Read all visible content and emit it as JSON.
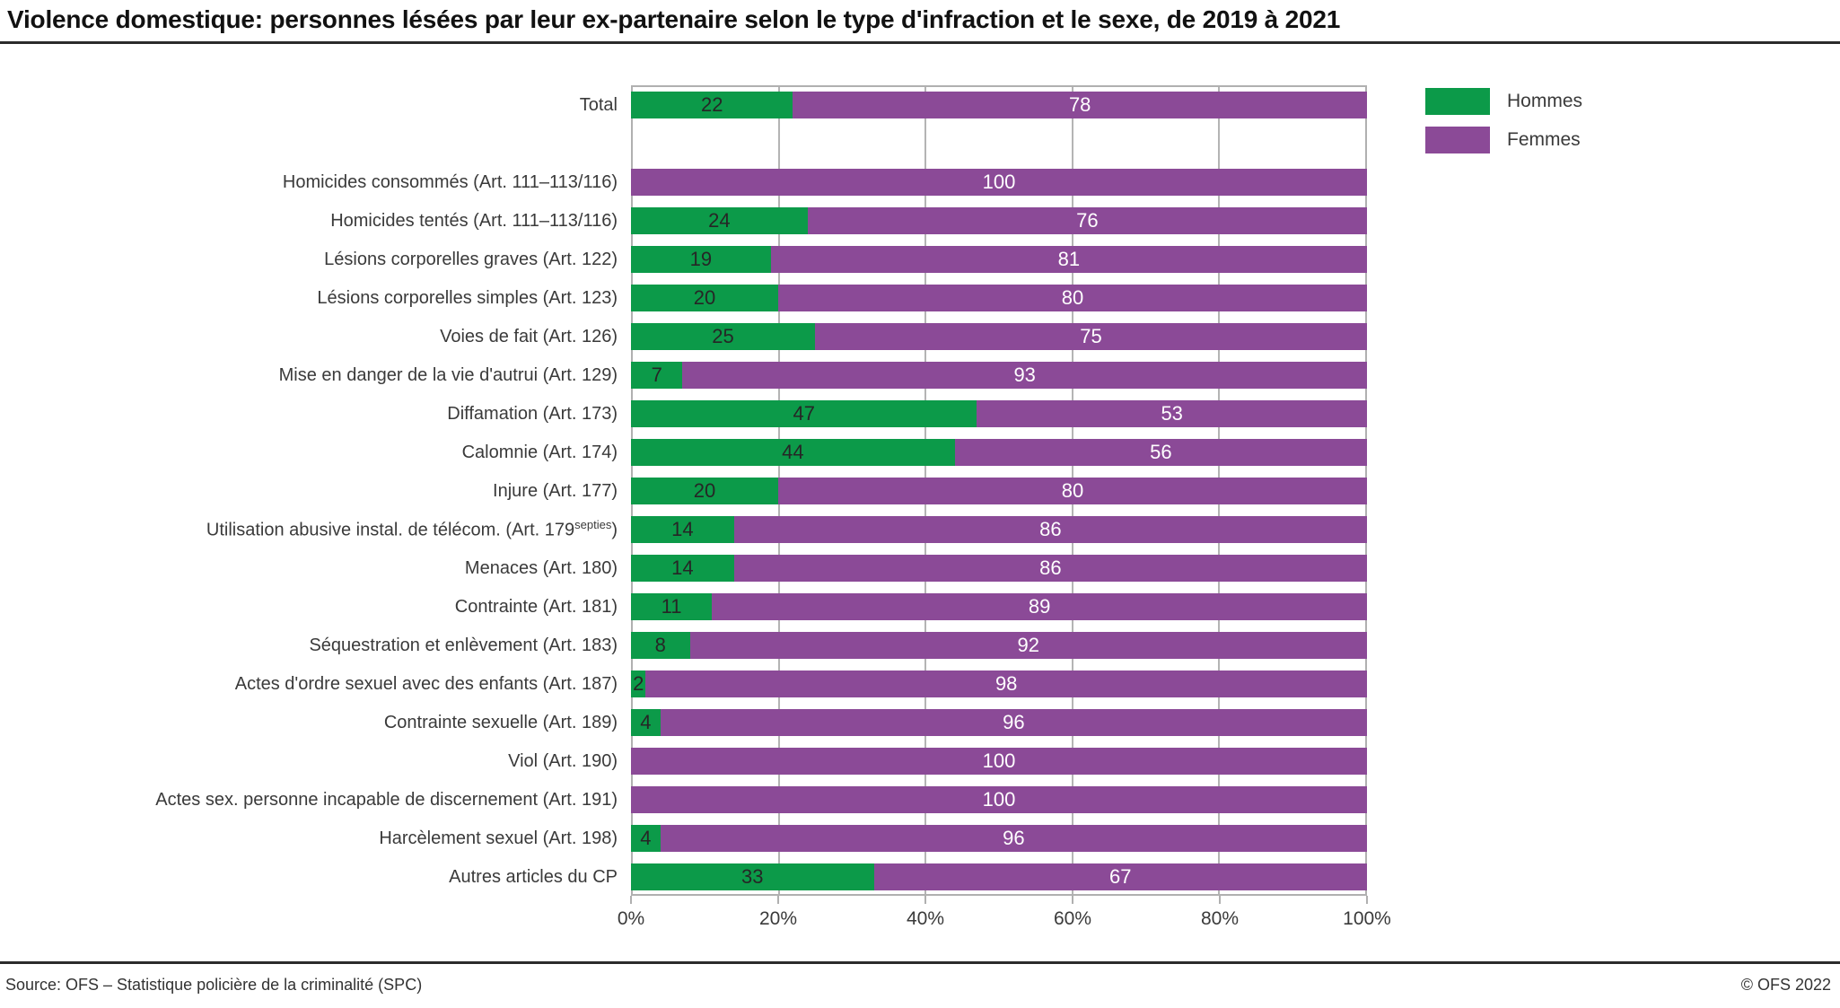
{
  "colors": {
    "hommes": "#0c9a49",
    "femmes": "#8b4a97",
    "grid": "#b4b4b4",
    "value_on_hommes": "#262626",
    "value_on_femmes": "#ffffff"
  },
  "legend": {
    "items": [
      {
        "label": "Hommes",
        "color_key": "hommes"
      },
      {
        "label": "Femmes",
        "color_key": "femmes"
      }
    ]
  },
  "footer": {
    "source": "Source: OFS – Statistique policière de la criminalité (SPC)",
    "copyright": "© OFS 2022"
  },
  "chart_data": {
    "type": "bar",
    "orientation": "horizontal",
    "stacked": true,
    "unit": "%",
    "title": "Violence domestique: personnes lésées par leur ex-partenaire selon le type d'infraction et le sexe, de 2019 à 2021",
    "xlim": [
      0,
      100
    ],
    "x_ticks": [
      "0%",
      "20%",
      "40%",
      "60%",
      "80%",
      "100%"
    ],
    "grid": true,
    "legend_position": "top-right",
    "spacer_after_index": 0,
    "categories": [
      "Total",
      "Homicides consommés (Art. 111–113/116)",
      "Homicides tentés (Art. 111–113/116)",
      "Lésions corporelles graves (Art. 122)",
      "Lésions corporelles simples (Art. 123)",
      "Voies de fait (Art. 126)",
      "Mise en danger de la vie d'autrui (Art. 129)",
      "Diffamation (Art. 173)",
      "Calomnie (Art. 174)",
      "Injure (Art. 177)",
      "Utilisation abusive instal. de télécom. (Art. 179^septies^)",
      "Menaces (Art. 180)",
      "Contrainte (Art. 181)",
      "Séquestration et enlèvement  (Art. 183)",
      "Actes d'ordre sexuel avec des enfants (Art. 187)",
      "Contrainte sexuelle (Art. 189)",
      "Viol (Art. 190)",
      "Actes sex. personne incapable de discernement (Art. 191)",
      "Harcèlement sexuel (Art. 198)",
      "Autres articles du CP"
    ],
    "series": [
      {
        "name": "Hommes",
        "values": [
          22,
          0,
          24,
          19,
          20,
          25,
          7,
          47,
          44,
          20,
          14,
          14,
          11,
          8,
          2,
          4,
          0,
          0,
          4,
          33
        ]
      },
      {
        "name": "Femmes",
        "values": [
          78,
          100,
          76,
          81,
          80,
          75,
          93,
          53,
          56,
          80,
          86,
          86,
          89,
          92,
          98,
          96,
          100,
          100,
          96,
          67
        ]
      }
    ]
  }
}
